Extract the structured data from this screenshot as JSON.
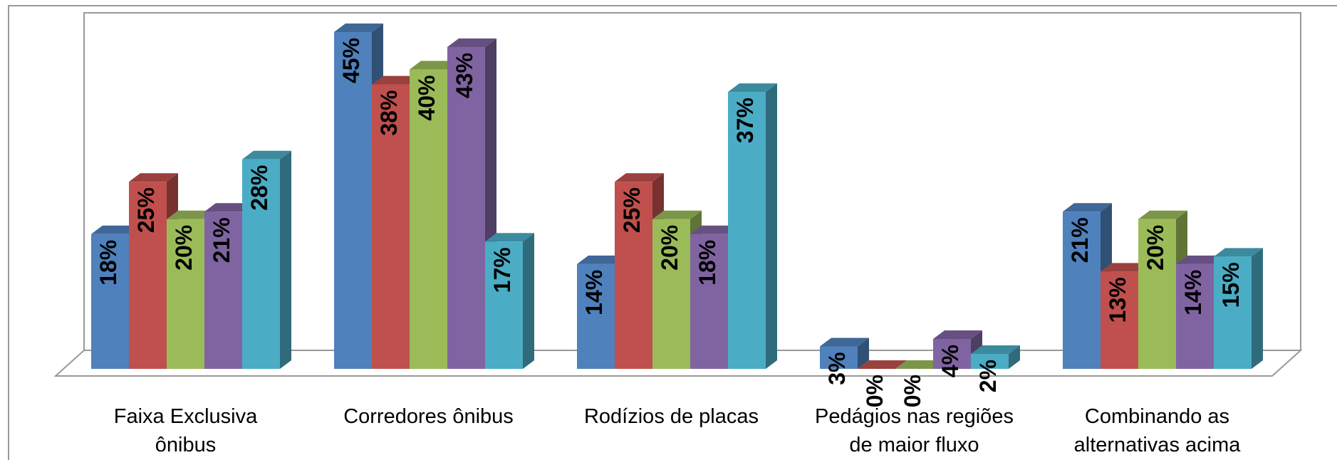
{
  "chart_data": {
    "type": "bar3d",
    "categories": [
      "Faixa Exclusiva\nônibus",
      "Corredores ônibus",
      "Rodízios de placas",
      "Pedágios nas regiões\nde maior fluxo",
      "Combinando as\nalternativas acima"
    ],
    "series": [
      {
        "color": "#4f81bd",
        "values": [
          18,
          45,
          14,
          3,
          21
        ],
        "value_labels": [
          "18%",
          "45%",
          "14%",
          "3%",
          "21%"
        ]
      },
      {
        "color": "#c0504d",
        "values": [
          25,
          38,
          25,
          0,
          13
        ],
        "value_labels": [
          "25%",
          "38%",
          "25%",
          "0%",
          "13%"
        ]
      },
      {
        "color": "#9bbb59",
        "values": [
          20,
          40,
          20,
          0,
          20
        ],
        "value_labels": [
          "20%",
          "40%",
          "20%",
          "0%",
          "20%"
        ]
      },
      {
        "color": "#8064a2",
        "values": [
          21,
          43,
          18,
          4,
          14
        ],
        "value_labels": [
          "21%",
          "43%",
          "18%",
          "4%",
          "14%"
        ]
      },
      {
        "color": "#4bacc6",
        "values": [
          28,
          17,
          37,
          2,
          15
        ],
        "value_labels": [
          "28%",
          "17%",
          "37%",
          "2%",
          "15%"
        ]
      }
    ]
  }
}
